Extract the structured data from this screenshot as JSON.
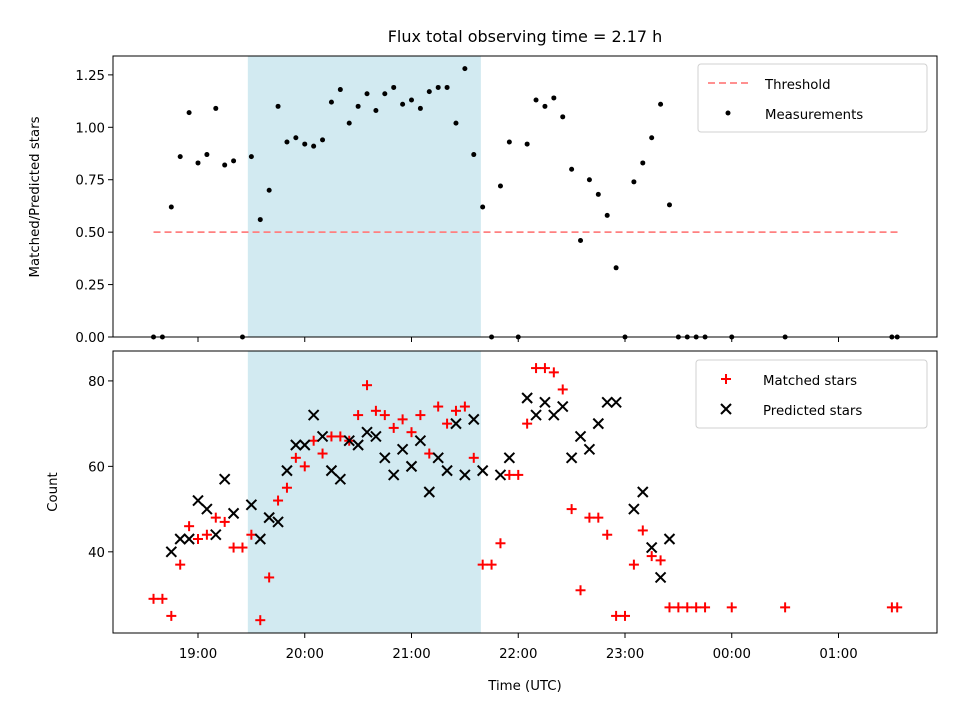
{
  "chart_data": [
    {
      "type": "scatter",
      "title": "Flux total observing time = 2.17 h",
      "xlabel": "",
      "ylabel": "Matched/Predicted stars",
      "ylim": [
        0,
        1.34
      ],
      "yticks": [
        "0.00",
        "0.25",
        "0.50",
        "0.75",
        "1.00",
        "1.25"
      ],
      "shaded_region": {
        "x_start": "19:28",
        "x_end": "21:39",
        "color": "#add8e6"
      },
      "threshold": {
        "name": "Threshold",
        "y": 0.5,
        "x_start": "18:35",
        "x_end": "01:35",
        "color": "#ff0000",
        "style": "dashed"
      },
      "legend": {
        "location": "top-right",
        "entries": [
          "Threshold",
          "Measurements"
        ]
      },
      "series": [
        {
          "name": "Measurements",
          "marker": "dot",
          "color": "#000000",
          "x": [
            "18:35",
            "18:40",
            "18:45",
            "18:50",
            "18:55",
            "19:00",
            "19:05",
            "19:10",
            "19:15",
            "19:20",
            "19:25",
            "19:30",
            "19:35",
            "19:40",
            "19:45",
            "19:50",
            "19:55",
            "20:00",
            "20:05",
            "20:10",
            "20:15",
            "20:20",
            "20:25",
            "20:30",
            "20:35",
            "20:40",
            "20:45",
            "20:50",
            "20:55",
            "21:00",
            "21:05",
            "21:10",
            "21:15",
            "21:20",
            "21:25",
            "21:30",
            "21:35",
            "21:40",
            "21:45",
            "21:50",
            "21:55",
            "22:00",
            "22:05",
            "22:10",
            "22:15",
            "22:20",
            "22:25",
            "22:30",
            "22:35",
            "22:40",
            "22:45",
            "22:50",
            "22:55",
            "23:00",
            "23:05",
            "23:10",
            "23:15",
            "23:20",
            "23:25",
            "23:30",
            "23:35",
            "23:40",
            "23:45",
            "00:00",
            "00:30",
            "01:30",
            "01:33"
          ],
          "values": [
            0.0,
            0.0,
            0.62,
            0.86,
            1.07,
            0.83,
            0.87,
            1.09,
            0.82,
            0.84,
            0.0,
            0.86,
            0.56,
            0.7,
            1.1,
            0.93,
            0.95,
            0.92,
            0.91,
            0.94,
            1.12,
            1.18,
            1.02,
            1.1,
            1.16,
            1.08,
            1.16,
            1.19,
            1.11,
            1.13,
            1.09,
            1.17,
            1.19,
            1.19,
            1.02,
            1.28,
            0.87,
            0.62,
            0.0,
            0.72,
            0.93,
            0.0,
            0.92,
            1.13,
            1.1,
            1.14,
            1.05,
            0.8,
            0.46,
            0.75,
            0.68,
            0.58,
            0.33,
            0.0,
            0.74,
            0.83,
            0.95,
            1.11,
            0.63,
            0.0,
            0.0,
            0.0,
            0.0,
            0.0,
            0.0,
            0.0,
            0.0
          ]
        }
      ]
    },
    {
      "type": "scatter",
      "title": "",
      "xlabel": "Time (UTC)",
      "ylabel": "Count",
      "ylim": [
        21,
        87
      ],
      "yticks": [
        "40",
        "60",
        "80"
      ],
      "xticks": [
        "19:00",
        "20:00",
        "21:00",
        "22:00",
        "23:00",
        "00:00",
        "01:00"
      ],
      "shaded_region": {
        "x_start": "19:28",
        "x_end": "21:39",
        "color": "#add8e6"
      },
      "legend": {
        "location": "top-right",
        "entries": [
          "Matched stars",
          "Predicted stars"
        ]
      },
      "series": [
        {
          "name": "Matched stars",
          "marker": "plus",
          "color": "#ff0000",
          "x": [
            "18:35",
            "18:40",
            "18:45",
            "18:50",
            "18:55",
            "19:00",
            "19:05",
            "19:10",
            "19:15",
            "19:20",
            "19:25",
            "19:30",
            "19:35",
            "19:40",
            "19:45",
            "19:50",
            "19:55",
            "20:00",
            "20:05",
            "20:10",
            "20:15",
            "20:20",
            "20:25",
            "20:30",
            "20:35",
            "20:40",
            "20:45",
            "20:50",
            "20:55",
            "21:00",
            "21:05",
            "21:10",
            "21:15",
            "21:20",
            "21:25",
            "21:30",
            "21:35",
            "21:40",
            "21:45",
            "21:50",
            "21:55",
            "22:00",
            "22:05",
            "22:10",
            "22:15",
            "22:20",
            "22:25",
            "22:30",
            "22:35",
            "22:40",
            "22:45",
            "22:50",
            "22:55",
            "23:00",
            "23:05",
            "23:10",
            "23:15",
            "23:20",
            "23:25",
            "23:30",
            "23:35",
            "23:40",
            "23:45",
            "00:00",
            "00:30",
            "01:30",
            "01:33"
          ],
          "values": [
            29,
            29,
            25,
            37,
            46,
            43,
            44,
            48,
            47,
            41,
            41,
            44,
            24,
            34,
            52,
            55,
            62,
            60,
            66,
            63,
            67,
            67,
            66,
            72,
            79,
            73,
            72,
            69,
            71,
            68,
            72,
            63,
            74,
            70,
            73,
            74,
            62,
            37,
            37,
            42,
            58,
            58,
            70,
            83,
            83,
            82,
            78,
            50,
            31,
            48,
            48,
            44,
            25,
            25,
            37,
            45,
            39,
            38,
            27,
            27,
            27,
            27,
            27,
            27,
            27,
            27,
            27
          ]
        },
        {
          "name": "Predicted stars",
          "marker": "x",
          "color": "#000000",
          "x": [
            "18:45",
            "18:50",
            "18:55",
            "19:00",
            "19:05",
            "19:10",
            "19:15",
            "19:20",
            "19:30",
            "19:35",
            "19:40",
            "19:45",
            "19:50",
            "19:55",
            "20:00",
            "20:05",
            "20:10",
            "20:15",
            "20:20",
            "20:25",
            "20:30",
            "20:35",
            "20:40",
            "20:45",
            "20:50",
            "20:55",
            "21:00",
            "21:05",
            "21:10",
            "21:15",
            "21:20",
            "21:25",
            "21:30",
            "21:35",
            "21:40",
            "21:50",
            "21:55",
            "22:05",
            "22:10",
            "22:15",
            "22:20",
            "22:25",
            "22:30",
            "22:35",
            "22:40",
            "22:45",
            "22:50",
            "22:55",
            "23:05",
            "23:10",
            "23:15",
            "23:20",
            "23:25"
          ],
          "values": [
            40,
            43,
            43,
            52,
            50,
            44,
            57,
            49,
            51,
            43,
            48,
            47,
            59,
            65,
            65,
            72,
            67,
            59,
            57,
            66,
            65,
            68,
            67,
            62,
            58,
            64,
            60,
            66,
            54,
            62,
            59,
            70,
            58,
            71,
            59,
            58,
            62,
            76,
            72,
            75,
            72,
            74,
            62,
            67,
            64,
            70,
            75,
            75,
            50,
            54,
            41,
            34,
            43
          ]
        }
      ]
    }
  ]
}
